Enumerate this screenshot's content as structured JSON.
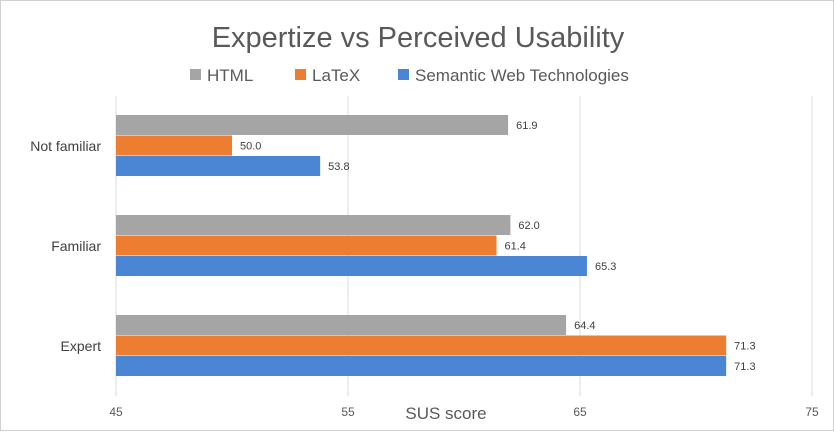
{
  "chart_data": {
    "type": "bar",
    "orientation": "horizontal",
    "title": "Expertize vs Perceived Usability",
    "xlabel": "SUS score",
    "ylabel": "",
    "categories": [
      "Not familiar",
      "Familiar",
      "Expert"
    ],
    "series": [
      {
        "name": "HTML",
        "color": "#a5a5a5",
        "values": [
          61.9,
          62.0,
          64.4
        ]
      },
      {
        "name": "LaTeX",
        "color": "#ed7d31",
        "values": [
          50.0,
          61.4,
          71.3
        ]
      },
      {
        "name": "Semantic Web Technologies",
        "color": "#4a86d4",
        "values": [
          53.8,
          65.3,
          71.3
        ]
      }
    ],
    "data_labels": [
      [
        "61.9",
        "62.0",
        "64.4"
      ],
      [
        "50.0",
        "61.4",
        "71.3"
      ],
      [
        "53.8",
        "65.3",
        "71.3"
      ]
    ],
    "xlim": [
      45,
      75
    ],
    "xticks": [
      "45",
      "55",
      "65",
      "75"
    ],
    "grid": "vertical major gridlines",
    "legend": "top"
  }
}
